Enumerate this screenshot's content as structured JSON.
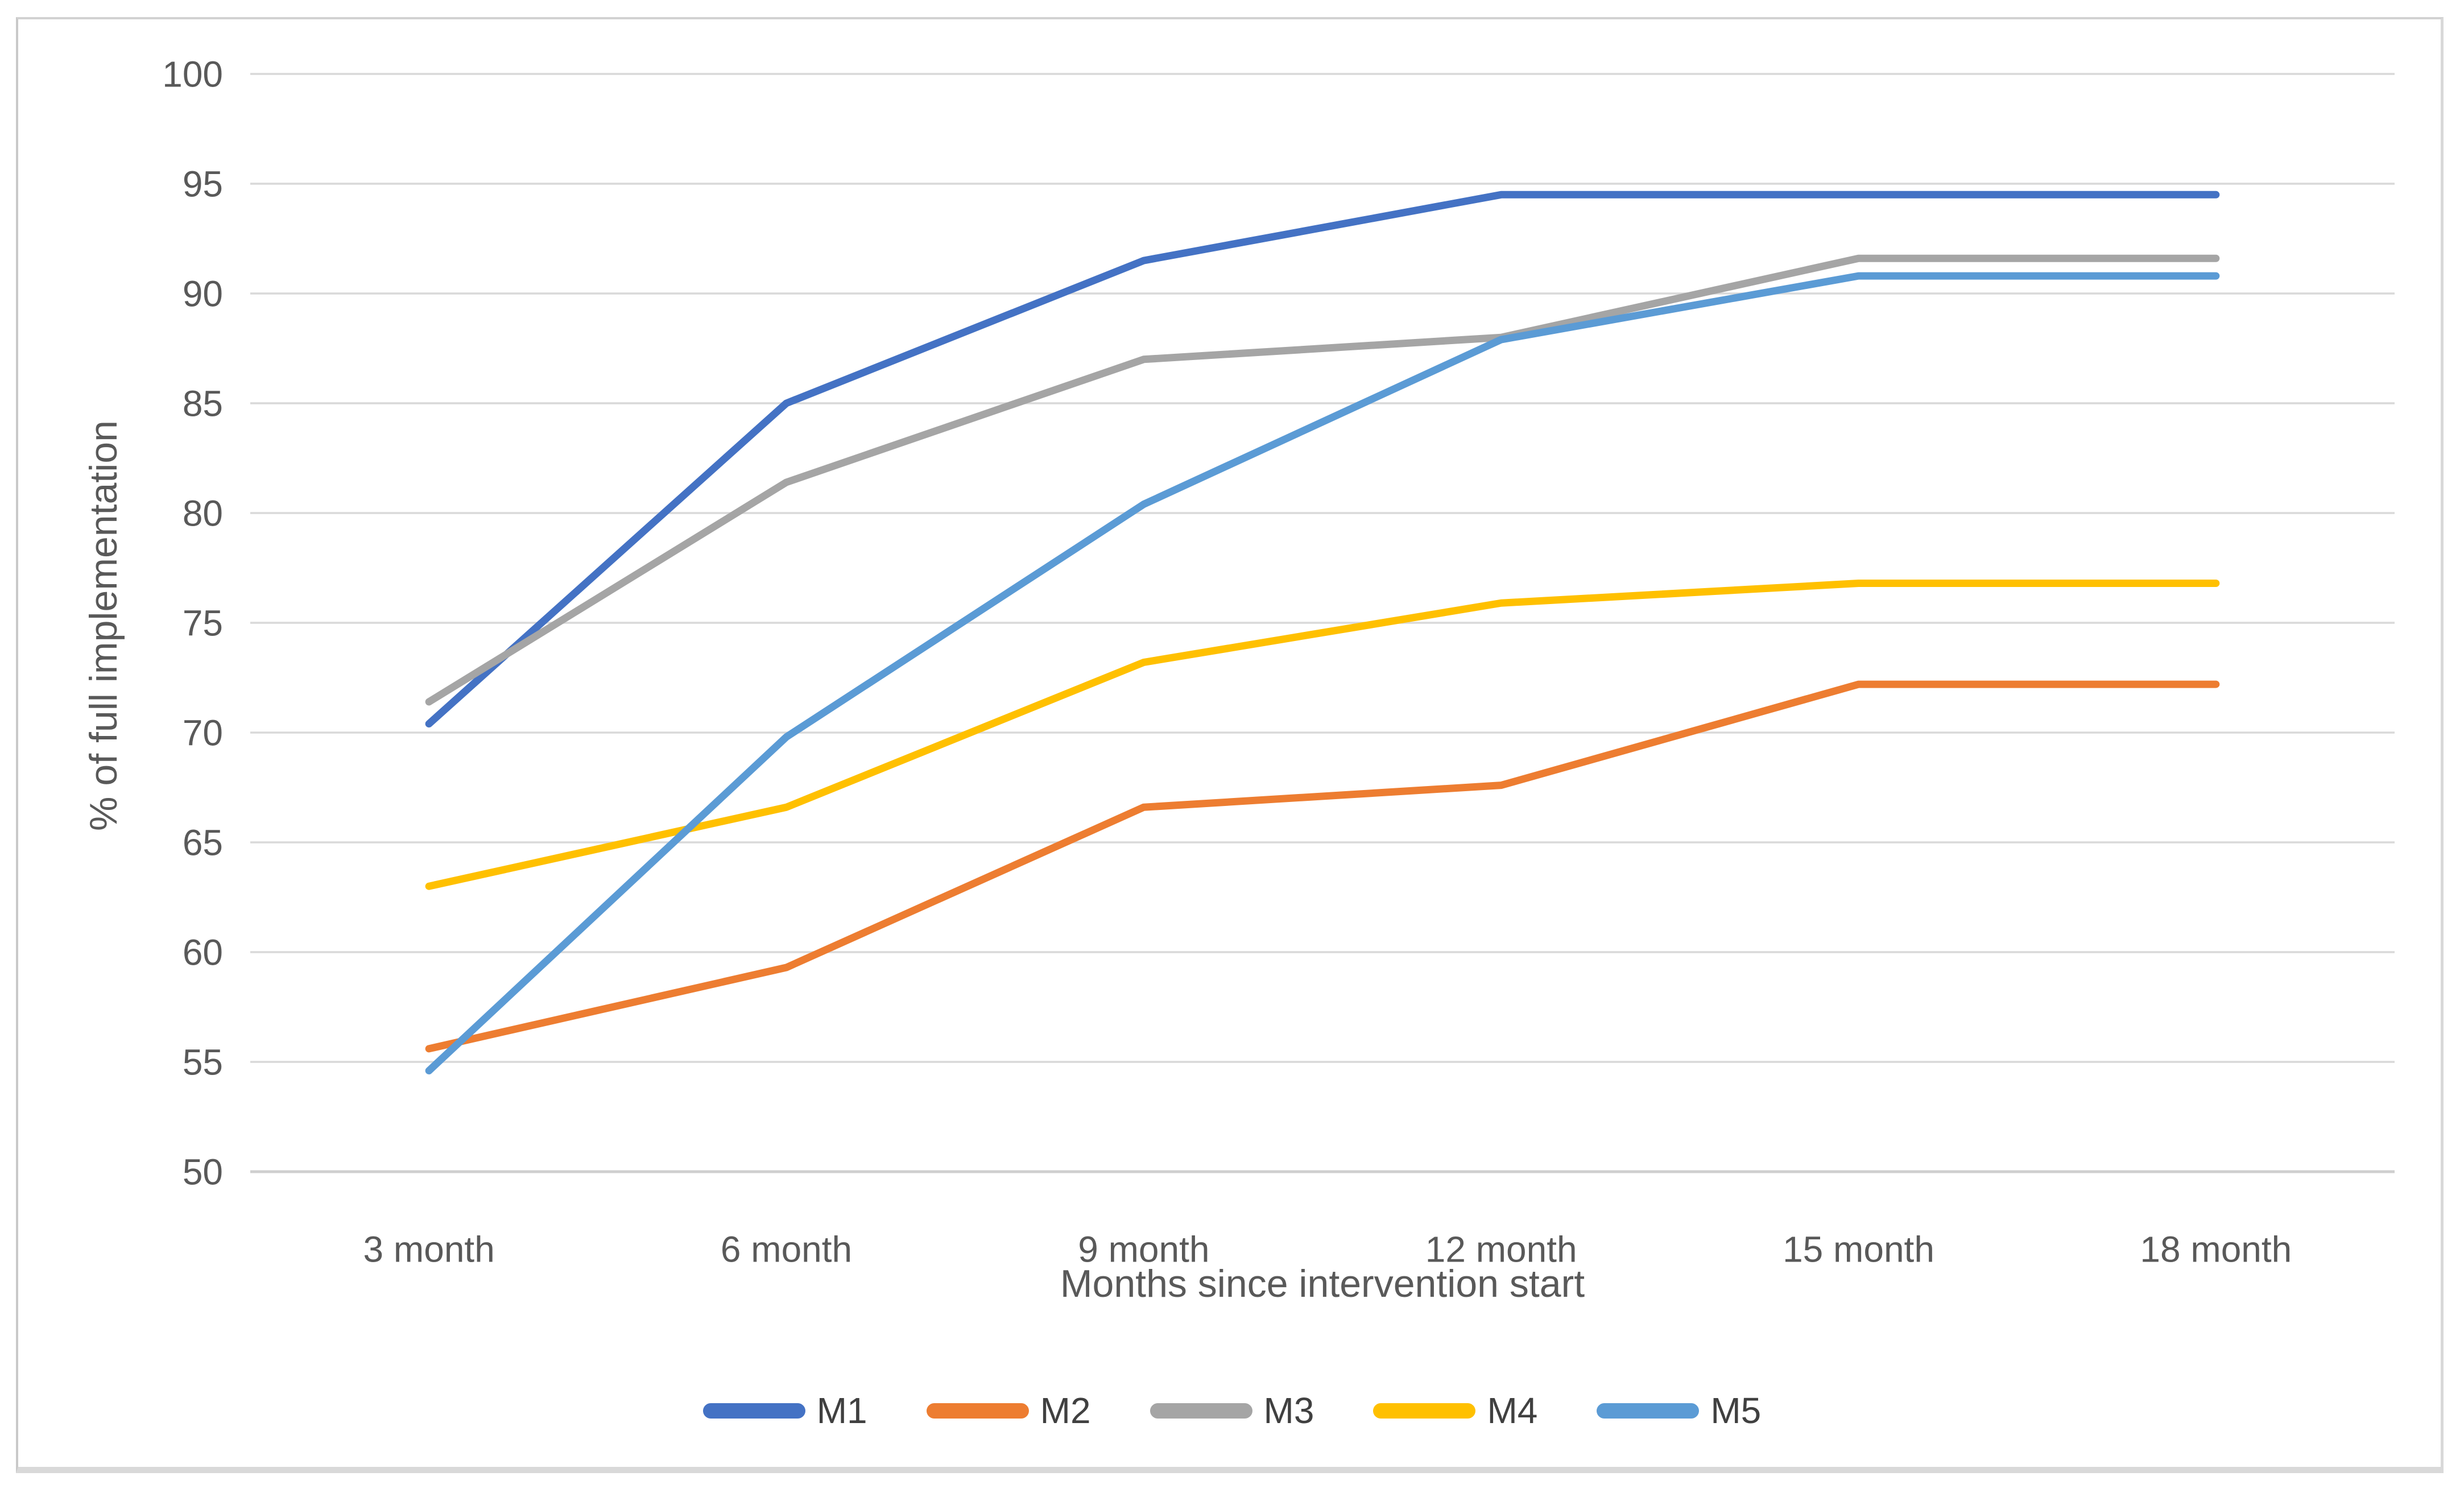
{
  "chart_data": {
    "type": "line",
    "title": "",
    "xlabel": "Months since intervention start",
    "ylabel": "% of full implementation",
    "categories": [
      "3 month",
      "6 month",
      "9 month",
      "12 month",
      "15 month",
      "18 month"
    ],
    "series": [
      {
        "name": "M1",
        "color": "#4472C4",
        "values": [
          70.4,
          85.0,
          91.5,
          94.5,
          94.5,
          94.5
        ]
      },
      {
        "name": "M2",
        "color": "#ED7D31",
        "values": [
          55.6,
          59.3,
          66.6,
          67.6,
          72.2,
          72.2
        ]
      },
      {
        "name": "M3",
        "color": "#A5A5A5",
        "values": [
          71.4,
          81.4,
          87.0,
          88.0,
          91.6,
          91.6
        ]
      },
      {
        "name": "M4",
        "color": "#FFC000",
        "values": [
          63.0,
          66.6,
          73.2,
          75.9,
          76.8,
          76.8
        ]
      },
      {
        "name": "M5",
        "color": "#5B9BD5",
        "values": [
          54.6,
          69.8,
          80.4,
          87.9,
          90.8,
          90.8
        ]
      }
    ],
    "ylim": [
      50,
      100
    ],
    "yticks": [
      50,
      55,
      60,
      65,
      70,
      75,
      80,
      85,
      90,
      95,
      100
    ],
    "grid": "on",
    "legend_position": "bottom",
    "gridline_color": "#D9D9D9",
    "baseline_color": "#CFCFCF",
    "axis_text_color": "#595959",
    "legend_text_color": "#404040"
  }
}
